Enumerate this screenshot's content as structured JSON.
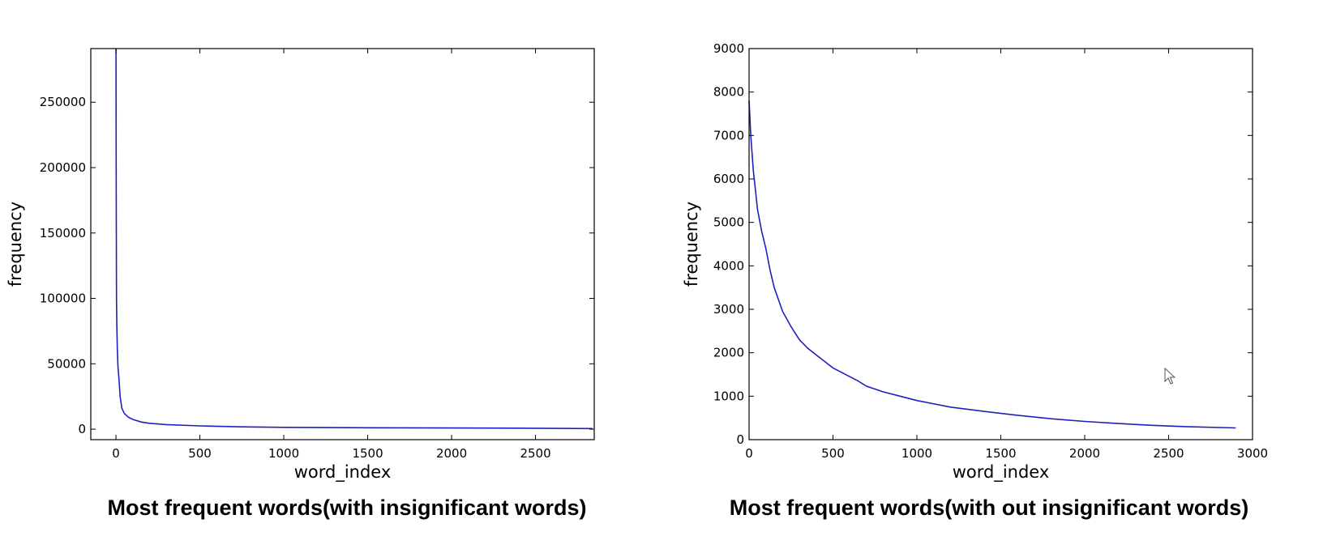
{
  "captions": {
    "left": "Most frequent words(with insignificant words)",
    "right": "Most frequent words(with out  insignificant words)"
  },
  "colors": {
    "line": "#1f1fbf",
    "axes": "#000000"
  },
  "chart_data": [
    {
      "type": "line",
      "xlabel": "word_index",
      "ylabel": "frequency",
      "xlim": [
        -150,
        2850
      ],
      "ylim": [
        -8000,
        291000
      ],
      "xticks": [
        0,
        500,
        1000,
        1500,
        2000,
        2500
      ],
      "yticks": [
        0,
        50000,
        100000,
        150000,
        200000,
        250000
      ],
      "xtick_labels": [
        "0",
        "500",
        "1000",
        "1500",
        "2000",
        "2500"
      ],
      "ytick_labels": [
        "0",
        "50000",
        "100000",
        "150000",
        "200000",
        "250000"
      ],
      "grid": false,
      "series": [
        {
          "x": [
            0,
            1,
            2,
            3,
            5,
            8,
            12,
            18,
            25,
            35,
            50,
            75,
            100,
            150,
            200,
            300,
            500,
            750,
            1000,
            1500,
            2000,
            2500,
            2840
          ],
          "y": [
            291000,
            200000,
            150000,
            100000,
            80000,
            62000,
            48000,
            38000,
            25000,
            16000,
            12000,
            9000,
            7500,
            5500,
            4500,
            3500,
            2500,
            1800,
            1400,
            1100,
            900,
            700,
            500
          ]
        }
      ]
    },
    {
      "type": "line",
      "xlabel": "word_index",
      "ylabel": "frequency",
      "xlim": [
        0,
        3000
      ],
      "ylim": [
        0,
        9000
      ],
      "xticks": [
        0,
        500,
        1000,
        1500,
        2000,
        2500,
        3000
      ],
      "yticks": [
        0,
        1000,
        2000,
        3000,
        4000,
        5000,
        6000,
        7000,
        8000,
        9000
      ],
      "xtick_labels": [
        "0",
        "500",
        "1000",
        "1500",
        "2000",
        "2500",
        "3000"
      ],
      "ytick_labels": [
        "0",
        "1000",
        "2000",
        "3000",
        "4000",
        "5000",
        "6000",
        "7000",
        "8000",
        "9000"
      ],
      "grid": false,
      "series": [
        {
          "x": [
            0,
            10,
            25,
            50,
            75,
            100,
            125,
            150,
            200,
            250,
            300,
            350,
            400,
            500,
            600,
            650,
            700,
            800,
            900,
            1000,
            1200,
            1400,
            1600,
            1800,
            2000,
            2200,
            2400,
            2600,
            2900
          ],
          "y": [
            7800,
            7000,
            6200,
            5300,
            4800,
            4400,
            3900,
            3500,
            2950,
            2600,
            2300,
            2100,
            1950,
            1650,
            1450,
            1350,
            1230,
            1100,
            1000,
            900,
            750,
            650,
            560,
            480,
            420,
            370,
            330,
            300,
            270
          ]
        }
      ]
    }
  ]
}
